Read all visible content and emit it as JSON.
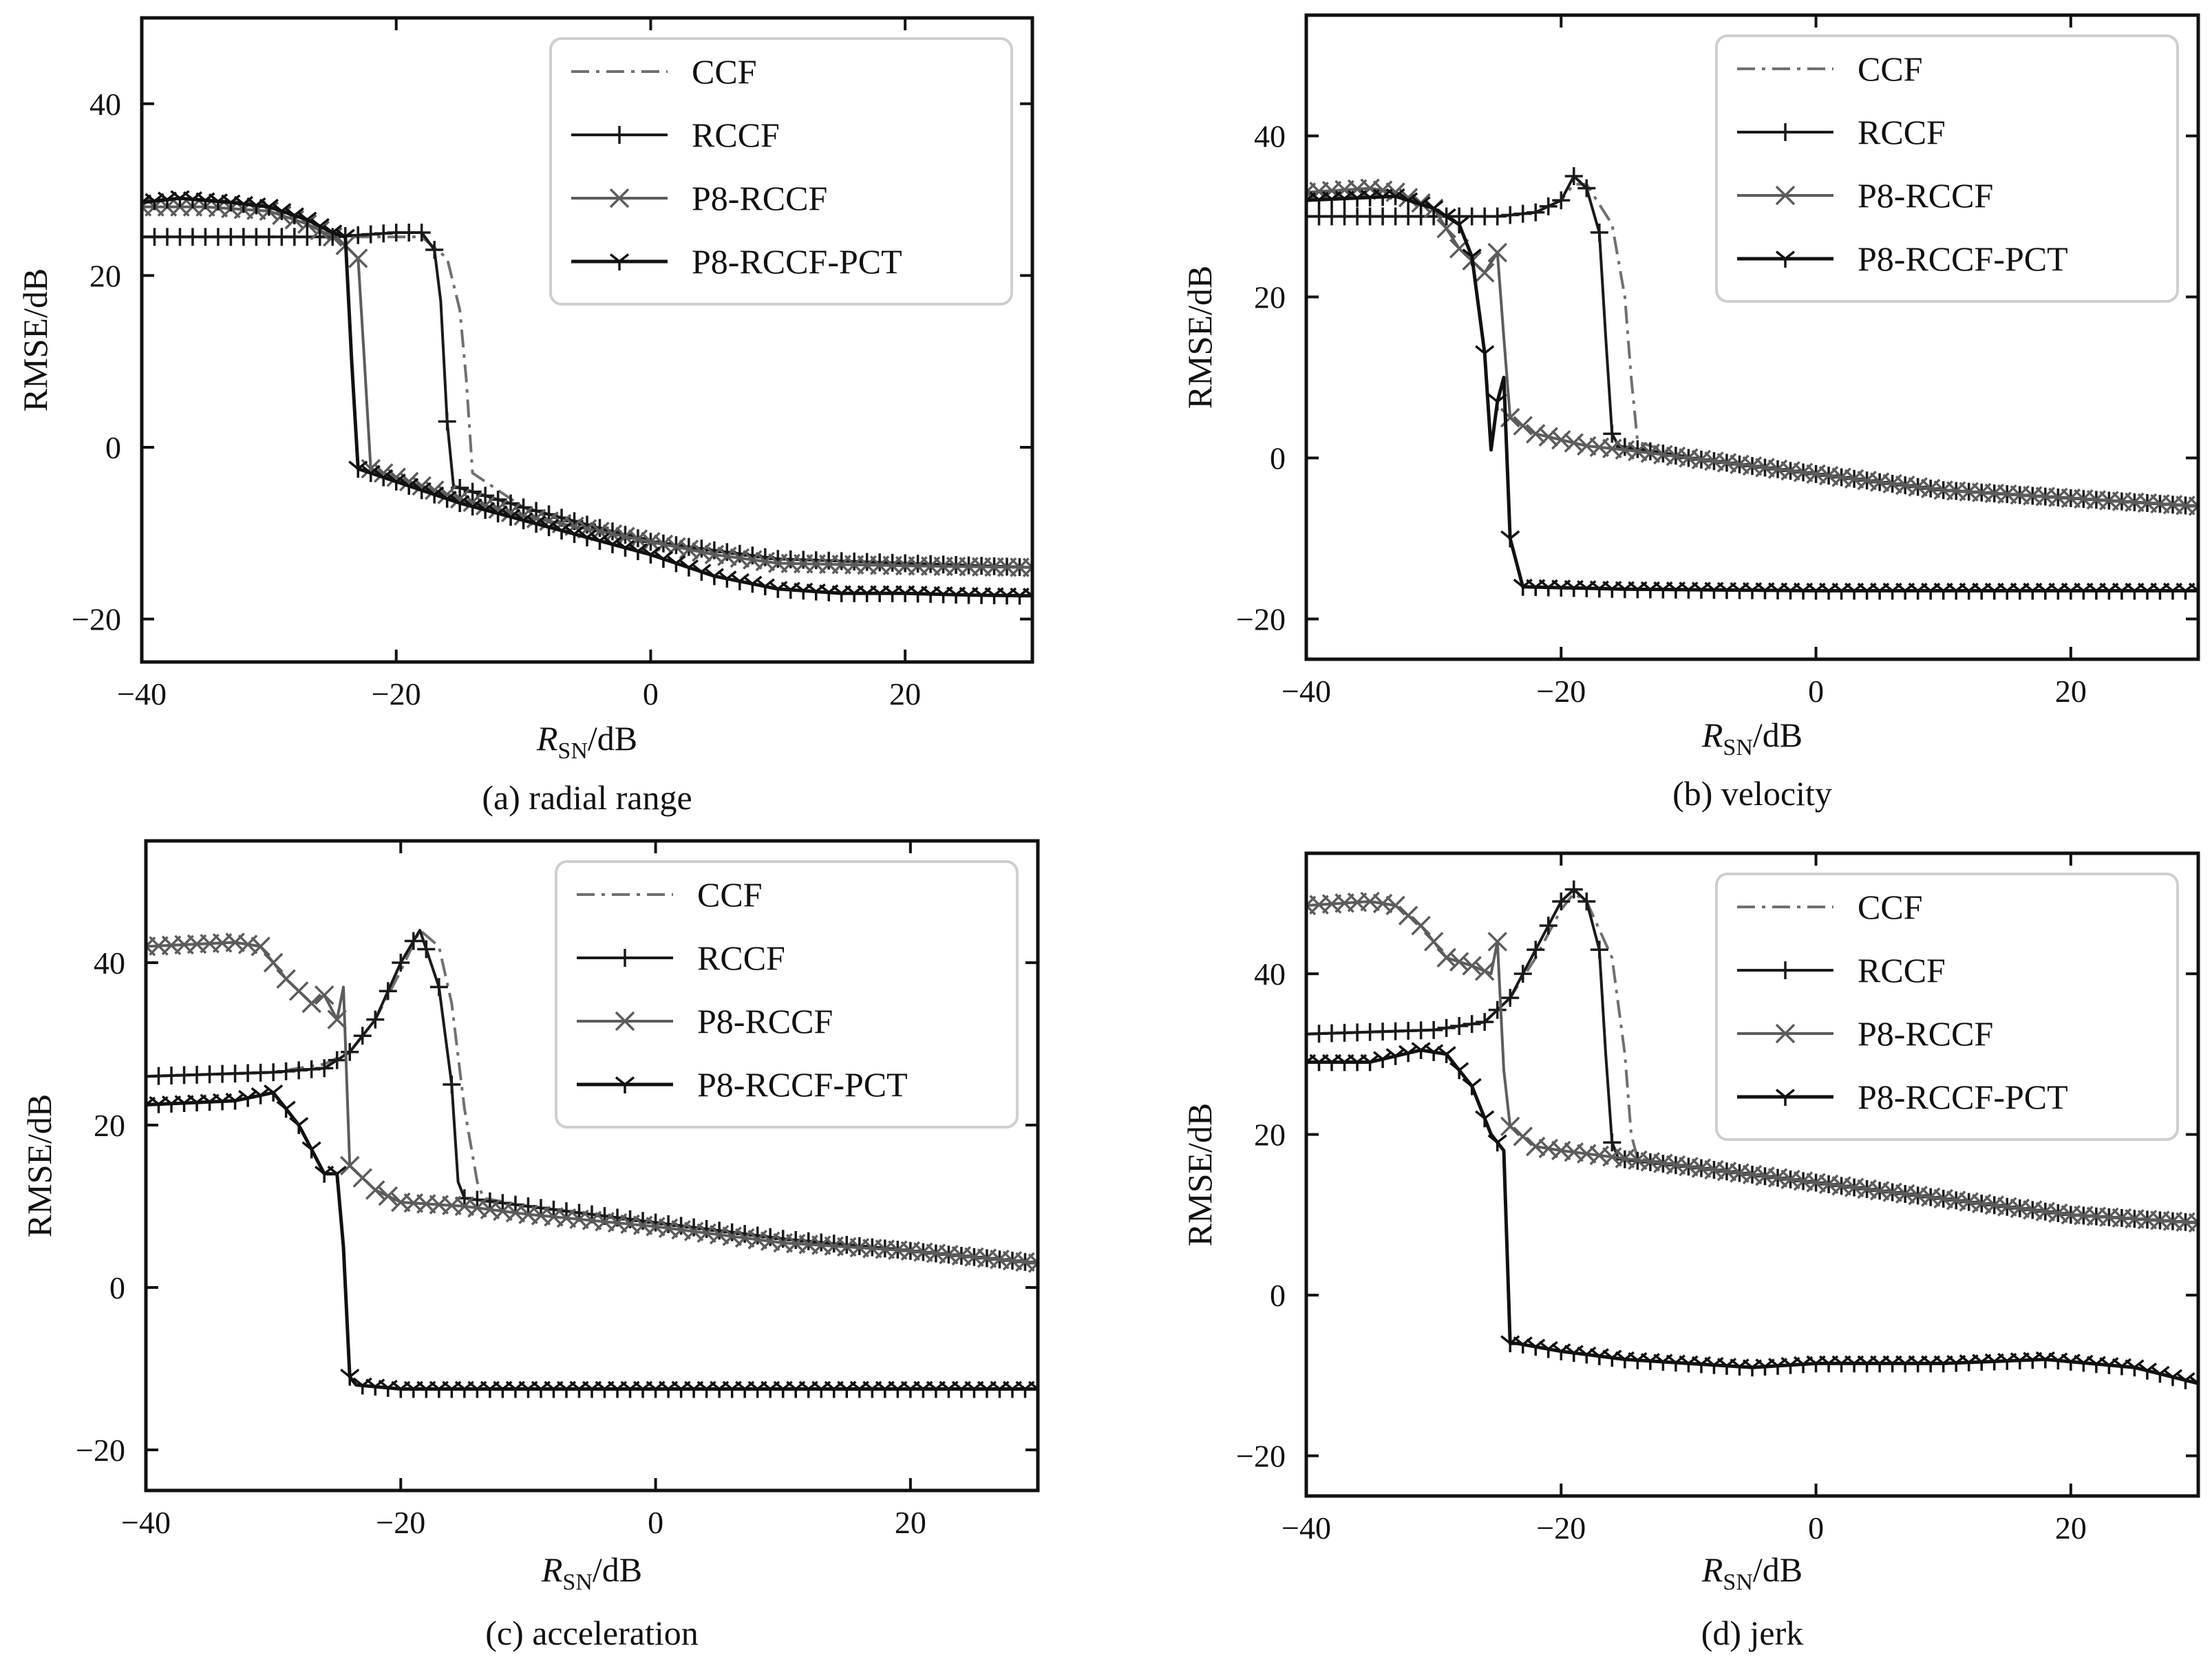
{
  "chart_data": [
    {
      "type": "line",
      "caption": "(a) radial range",
      "xlabel": "RSN/dB",
      "ylabel": "RMSE/dB",
      "xlim": [
        -40,
        30
      ],
      "ylim": [
        -25,
        50
      ],
      "xticks": [
        -40,
        -20,
        0,
        20
      ],
      "yticks": [
        -20,
        0,
        20,
        40
      ],
      "legend_position": "top-right",
      "series": [
        {
          "name": "CCF",
          "style": "dashdot",
          "x": [
            -40,
            -30,
            -25,
            -18,
            -16,
            -15,
            -14.5,
            -14,
            -10,
            -5,
            0,
            5,
            10,
            20,
            30
          ],
          "y": [
            24.5,
            24.5,
            24.5,
            24.5,
            22,
            16,
            8,
            -3,
            -7,
            -9,
            -11,
            -12,
            -13,
            -13.5,
            -14
          ]
        },
        {
          "name": "RCCF",
          "style": "plus",
          "x": [
            -40,
            -30,
            -25,
            -20,
            -18,
            -17,
            -16.5,
            -16,
            -15.5,
            -10,
            -5,
            0,
            5,
            10,
            20,
            30
          ],
          "y": [
            24.5,
            24.5,
            24.5,
            25,
            25,
            23,
            17,
            3,
            -4.5,
            -7,
            -9,
            -11,
            -12,
            -13,
            -13.5,
            -14
          ]
        },
        {
          "name": "P8-RCCF",
          "style": "x",
          "x": [
            -40,
            -35,
            -30,
            -27,
            -25,
            -24,
            -23,
            -22.5,
            -22,
            -20,
            -15,
            -10,
            -5,
            0,
            5,
            10,
            20,
            30
          ],
          "y": [
            28,
            28,
            27.5,
            26,
            24.5,
            23.5,
            22,
            10,
            -2.5,
            -3.5,
            -6,
            -8,
            -9.5,
            -11,
            -12.5,
            -13.5,
            -13.8,
            -14
          ]
        },
        {
          "name": "P8-RCCF-PCT",
          "style": "tri",
          "x": [
            -40,
            -37,
            -33,
            -30,
            -27,
            -25,
            -24,
            -23.5,
            -23,
            -20,
            -15,
            -10,
            -5,
            0,
            5,
            10,
            15,
            20,
            25,
            30
          ],
          "y": [
            28.5,
            29,
            28.5,
            28,
            26.5,
            25,
            24.5,
            10,
            -2.5,
            -4,
            -6.5,
            -8.5,
            -10.5,
            -12.5,
            -15,
            -16.5,
            -17,
            -17,
            -17.2,
            -17.3
          ]
        }
      ]
    },
    {
      "type": "line",
      "caption": "(b) velocity",
      "xlabel": "RSN/dB",
      "ylabel": "RMSE/dB",
      "xlim": [
        -40,
        30
      ],
      "ylim": [
        -25,
        55
      ],
      "xticks": [
        -40,
        -20,
        0,
        20
      ],
      "yticks": [
        -20,
        0,
        20,
        40
      ],
      "legend_position": "top-right",
      "series": [
        {
          "name": "CCF",
          "style": "dashdot",
          "x": [
            -40,
            -30,
            -25,
            -22,
            -20,
            -19,
            -18,
            -16,
            -15,
            -14.5,
            -14,
            -10,
            0,
            10,
            20,
            30
          ],
          "y": [
            30,
            30,
            30,
            30.5,
            32,
            34,
            34,
            29,
            20,
            10,
            2,
            0,
            -2,
            -4,
            -5,
            -6
          ]
        },
        {
          "name": "RCCF",
          "style": "plus",
          "x": [
            -40,
            -30,
            -25,
            -22,
            -20,
            -19,
            -18,
            -17,
            -16.5,
            -16,
            -15.5,
            -10,
            0,
            10,
            20,
            30
          ],
          "y": [
            30,
            30,
            30,
            30.5,
            32,
            35,
            33.5,
            28,
            15,
            3,
            1.5,
            0,
            -2,
            -4,
            -5,
            -6
          ]
        },
        {
          "name": "P8-RCCF",
          "style": "x",
          "x": [
            -40,
            -35,
            -33,
            -30,
            -28,
            -26,
            -25,
            -24.5,
            -24,
            -22,
            -18,
            -15,
            -10,
            0,
            10,
            20,
            30
          ],
          "y": [
            33,
            33.5,
            33,
            31,
            26,
            23,
            25.5,
            15,
            5,
            3,
            1.5,
            1,
            0,
            -2,
            -4,
            -5,
            -6
          ]
        },
        {
          "name": "P8-RCCF-PCT",
          "style": "tri",
          "x": [
            -40,
            -33,
            -30,
            -28,
            -27,
            -26,
            -25.5,
            -25,
            -24.5,
            -24,
            -23,
            -15,
            0,
            15,
            30
          ],
          "y": [
            32,
            32.5,
            31,
            29,
            25,
            13,
            1,
            7,
            10,
            -10,
            -16,
            -16.3,
            -16.5,
            -16.5,
            -16.5
          ]
        }
      ]
    },
    {
      "type": "line",
      "caption": "(c) acceleration",
      "xlabel": "RSN/dB",
      "ylabel": "RMSE/dB",
      "xlim": [
        -40,
        30
      ],
      "ylim": [
        -25,
        55
      ],
      "xticks": [
        -40,
        -20,
        0,
        20
      ],
      "yticks": [
        -20,
        0,
        20,
        40
      ],
      "legend_position": "top-right",
      "series": [
        {
          "name": "CCF",
          "style": "dashdot",
          "x": [
            -40,
            -30,
            -26,
            -24,
            -22,
            -20,
            -18.5,
            -17,
            -16,
            -15,
            -14,
            -13.5,
            -10,
            0,
            10,
            20,
            30
          ],
          "y": [
            26,
            26.5,
            27.5,
            29,
            33,
            39,
            44,
            42,
            35,
            22,
            13,
            11,
            10,
            8,
            6,
            4.5,
            3
          ]
        },
        {
          "name": "RCCF",
          "style": "plus",
          "x": [
            -40,
            -30,
            -26,
            -24,
            -22,
            -20,
            -18.5,
            -17,
            -16,
            -15.5,
            -15,
            -10,
            0,
            10,
            20,
            30
          ],
          "y": [
            26,
            26.5,
            27,
            29,
            33,
            40,
            44,
            37,
            25,
            13,
            11,
            10,
            8,
            6,
            4.5,
            3
          ]
        },
        {
          "name": "P8-RCCF",
          "style": "x",
          "x": [
            -40,
            -33,
            -31,
            -29,
            -27,
            -26,
            -25,
            -24.5,
            -24,
            -22,
            -20,
            -15,
            -10,
            0,
            10,
            20,
            30
          ],
          "y": [
            42,
            42.5,
            42,
            38,
            35,
            36,
            33,
            37,
            15,
            12,
            10.5,
            10,
            9,
            7.5,
            5.5,
            4.5,
            3
          ]
        },
        {
          "name": "P8-RCCF-PCT",
          "style": "tri",
          "x": [
            -40,
            -33,
            -30,
            -28,
            -26,
            -25,
            -24.5,
            -24,
            -23.5,
            -20,
            -10,
            0,
            10,
            20,
            30
          ],
          "y": [
            22.5,
            23,
            24,
            20,
            14,
            14,
            5,
            -11,
            -12,
            -12.5,
            -12.5,
            -12.5,
            -12.5,
            -12.5,
            -12.5
          ]
        }
      ]
    },
    {
      "type": "line",
      "caption": "(d) jerk",
      "xlabel": "RSN/dB",
      "ylabel": "RMSE/dB",
      "xlim": [
        -40,
        30
      ],
      "ylim": [
        -25,
        55
      ],
      "xticks": [
        -40,
        -20,
        0,
        20
      ],
      "yticks": [
        -20,
        0,
        20,
        40
      ],
      "legend_position": "top-right",
      "series": [
        {
          "name": "CCF",
          "style": "dashdot",
          "x": [
            -40,
            -30,
            -26,
            -24,
            -22,
            -20,
            -19,
            -18,
            -16,
            -15,
            -14.5,
            -14,
            -10,
            0,
            10,
            20,
            30
          ],
          "y": [
            32.5,
            33,
            34,
            37,
            42,
            48,
            50,
            49,
            42,
            30,
            20,
            17,
            16,
            14,
            12,
            10,
            9
          ]
        },
        {
          "name": "RCCF",
          "style": "plus",
          "x": [
            -40,
            -30,
            -26,
            -24,
            -22,
            -20,
            -19,
            -18,
            -17,
            -16.5,
            -16,
            -15.5,
            -10,
            0,
            10,
            20,
            30
          ],
          "y": [
            32.5,
            33,
            34,
            37,
            43,
            49,
            50.5,
            49,
            43,
            30,
            19,
            17,
            16,
            14,
            12,
            10,
            9
          ]
        },
        {
          "name": "P8-RCCF",
          "style": "x",
          "x": [
            -40,
            -35,
            -33,
            -31,
            -29,
            -27,
            -25.5,
            -25,
            -24.5,
            -24,
            -22,
            -20,
            -15,
            -10,
            0,
            10,
            20,
            30
          ],
          "y": [
            48.5,
            49,
            48.5,
            46,
            42,
            41,
            40,
            44,
            28,
            21,
            18.5,
            18,
            17,
            16,
            14,
            12,
            10,
            9
          ]
        },
        {
          "name": "P8-RCCF-PCT",
          "style": "tri",
          "x": [
            -40,
            -35,
            -31,
            -29,
            -27,
            -25.5,
            -24.5,
            -24,
            -23.5,
            -20,
            -15,
            -10,
            -5,
            0,
            10,
            18,
            25,
            30
          ],
          "y": [
            29,
            29,
            30.5,
            30,
            26,
            20,
            18,
            -6,
            -6,
            -7,
            -8,
            -8.5,
            -9,
            -8.5,
            -8.5,
            -8,
            -9,
            -11
          ]
        }
      ]
    }
  ]
}
